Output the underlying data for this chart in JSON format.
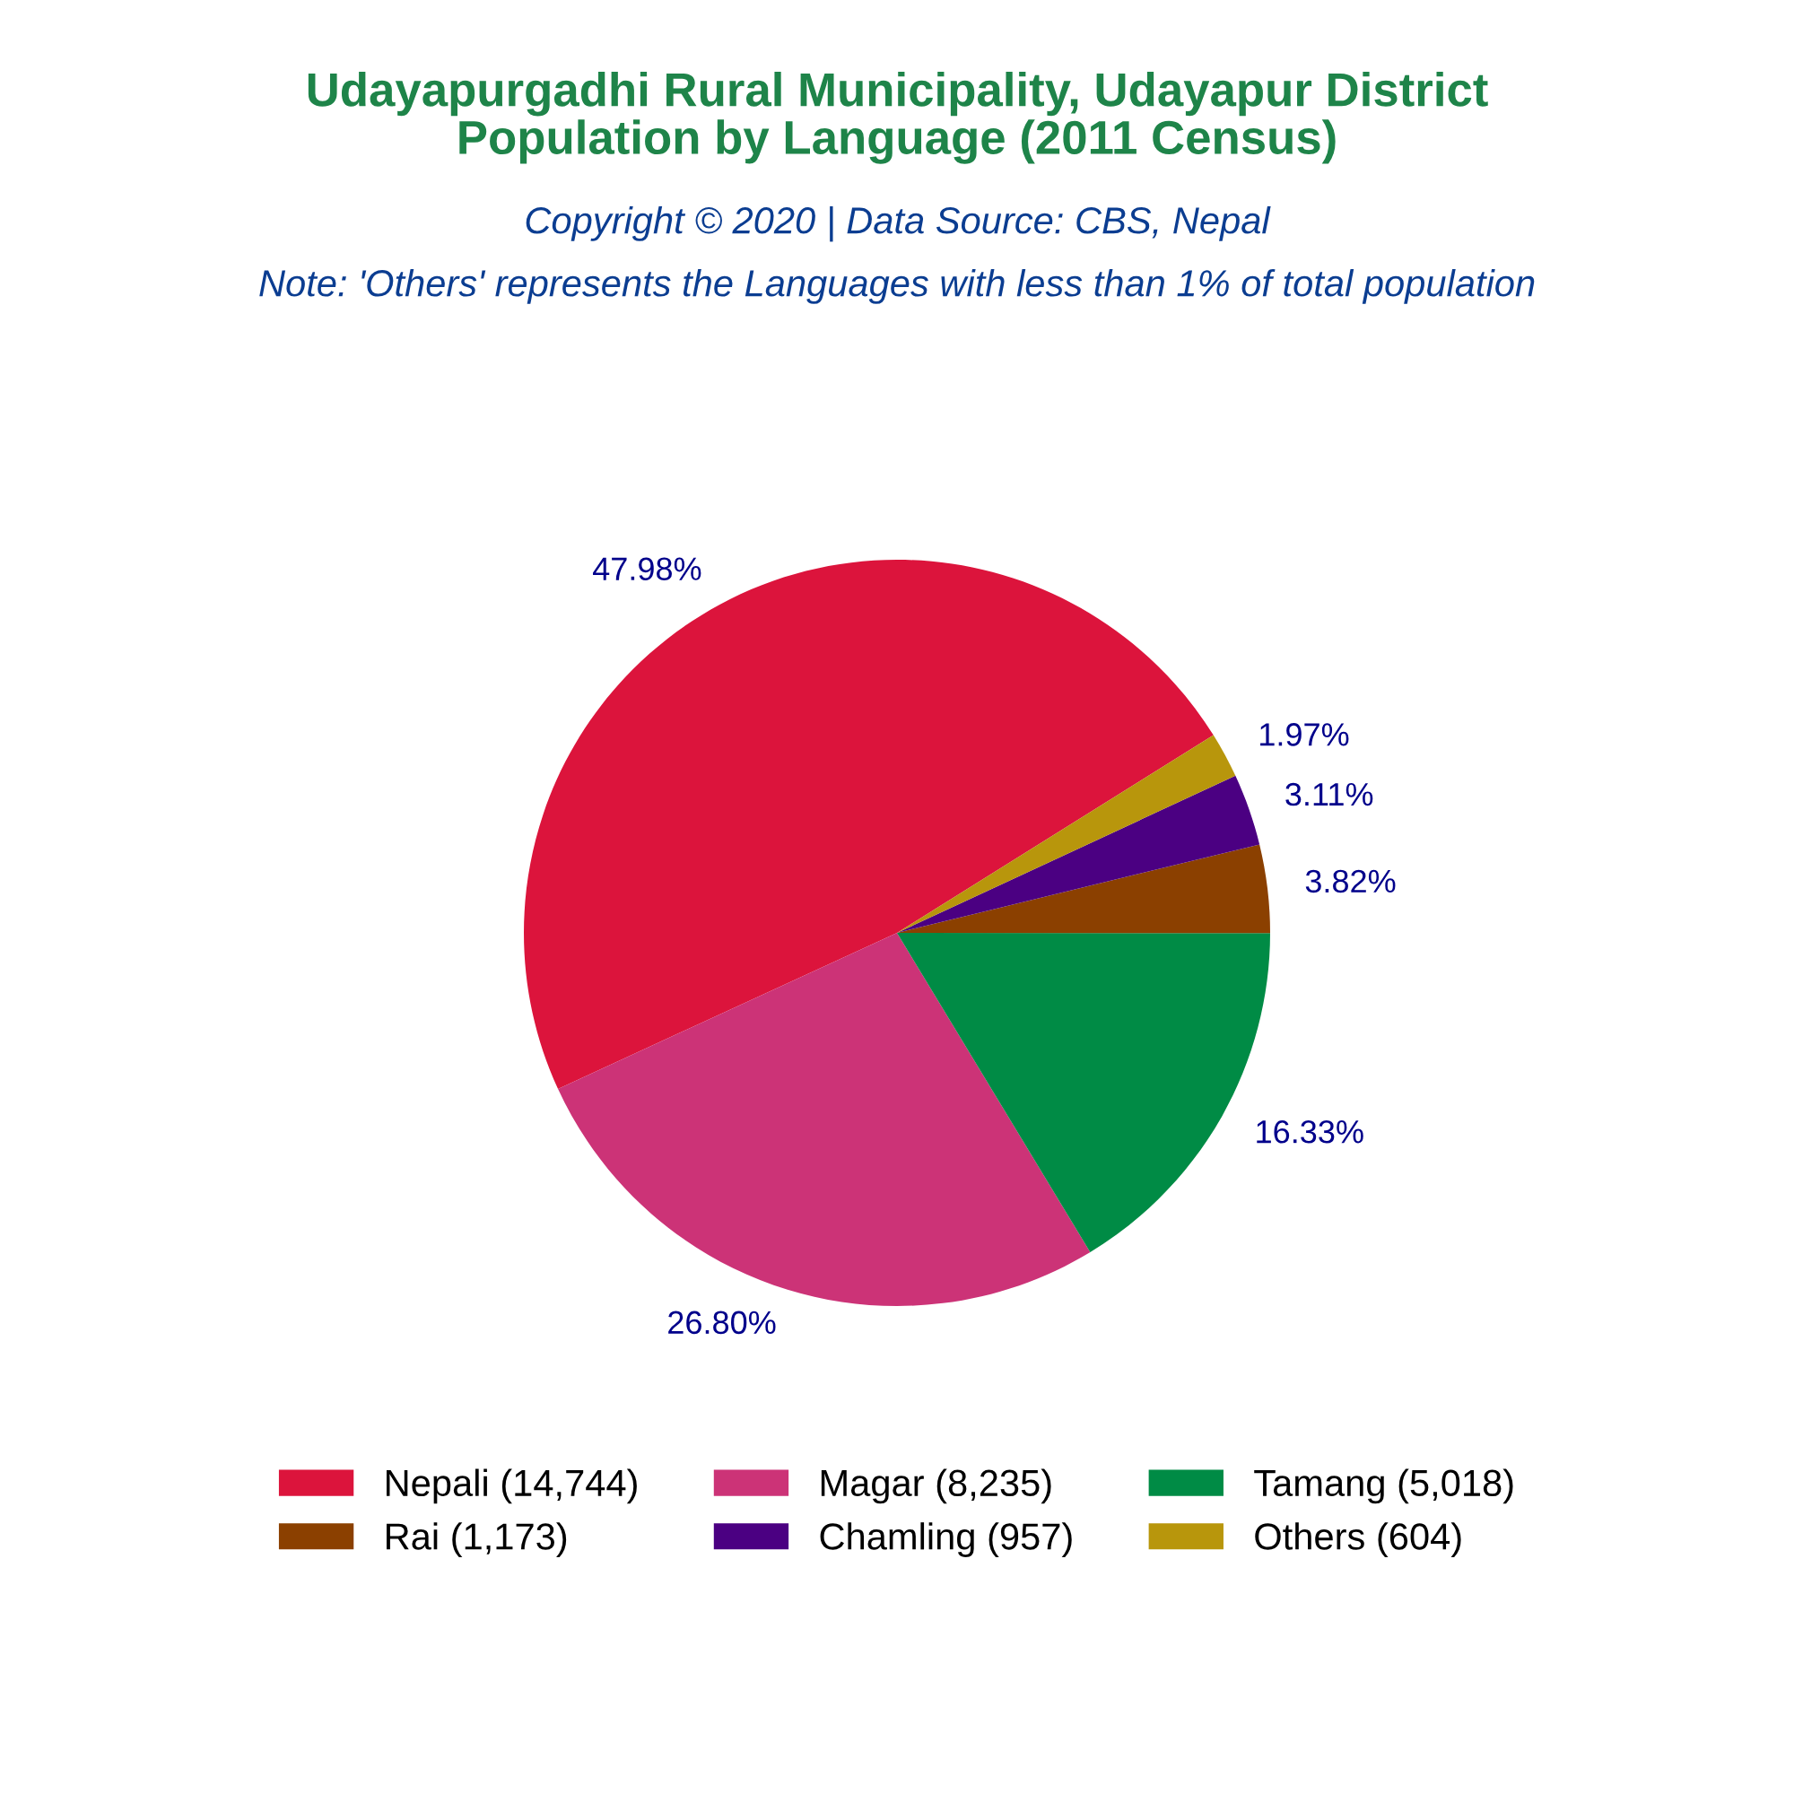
{
  "chart_data": {
    "type": "pie",
    "title": "Udayapurgadhi Rural Municipality, Udayapur District\nPopulation by Language (2011 Census)",
    "subtitle": "Copyright © 2020 | Data Source: CBS, Nepal",
    "annotations": [
      "Note: 'Others' represents the Languages with less than 1% of total population"
    ],
    "categories": [
      "Nepali (14,744)",
      "Magar (8,235)",
      "Tamang (5,018)",
      "Rai (1,173)",
      "Chamling (957)",
      "Others (604)"
    ],
    "values": [
      47.98,
      26.8,
      16.33,
      3.82,
      3.11,
      1.97
    ],
    "value_labels": [
      "47.98%",
      "26.80%",
      "16.33%",
      "3.82%",
      "3.11%",
      "1.97%"
    ],
    "colors": [
      "#dc143c",
      "#cc3377",
      "#008b45",
      "#8b4000",
      "#4b0082",
      "#b8960c"
    ],
    "legend": "bottom"
  }
}
